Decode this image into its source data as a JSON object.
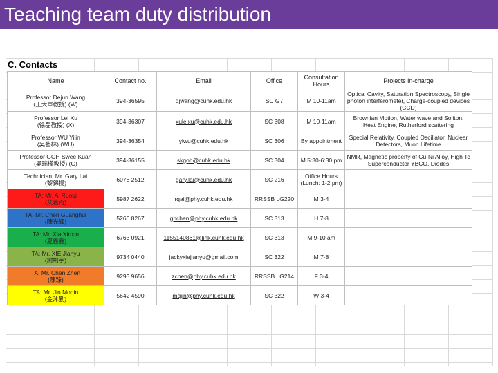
{
  "slide": {
    "title": "Teaching team duty distribution"
  },
  "section": {
    "label": "C. Contacts"
  },
  "colors": {
    "title_bar": "#6a3d9a",
    "red": "#ff1a1a",
    "blue": "#2f73c9",
    "green": "#19b04b",
    "olive": "#8ab34a",
    "orange": "#f07c2a",
    "yellow": "#ffff00"
  },
  "table": {
    "headers": [
      "Name",
      "Contact no.",
      "Email",
      "Office",
      "Consultation Hours",
      "Projects in-charge"
    ],
    "rows": [
      {
        "name_line1": "Professor Dejun Wang",
        "name_line2": "(王大軍教授) (W)",
        "contact": "394-36595",
        "email": "djwang@cuhk.edu.hk",
        "office": "SC G7",
        "hours": "M 10-11am",
        "projects": "Optical Cavity, Saturation Spectroscopy, Single photon interferometer, Charge-coupled devices (CCD)"
      },
      {
        "name_line1": "Professor Lei Xu",
        "name_line2": "(徐磊教授) (X)",
        "contact": "394-36307",
        "email": "xuleixu@cuhk.edu.hk",
        "office": "SC 308",
        "hours": "M 10-11am",
        "projects": "Brownian Motion, Water wave and Soliton, Heat Engine, Rutherford scattering"
      },
      {
        "name_line1": "Professor WU Yilin",
        "name_line2": "(吳藝林) (WU)",
        "contact": "394-36354",
        "email": "ylwu@cuhk.edu.hk",
        "office": "SC 306",
        "hours": "By appointment",
        "projects": "Special Relativity, Coupled Oscillator, Nuclear Detectors, Muon Lifetime"
      },
      {
        "name_line1": "Professor GOH Swee Kuan",
        "name_line2": "(吳瑞權教授) (G)",
        "contact": "394-36155",
        "email": "skgoh@cuhk.edu.hk",
        "office": "SC 304",
        "hours": "M 5:30-6:30 pm",
        "projects": "NMR, Magnetic property of Cu-Ni Alloy, High Tc Superconductor YBCO, Diodes"
      },
      {
        "name_line1": "Technician: Mr. Gary Lai",
        "name_line2": "(黎錦揚)",
        "contact": "6078 2512",
        "email": "gary.lai@cuhk.edu.hk",
        "office": "SC 216",
        "hours": "Office Hours (Lunch: 1-2 pm)",
        "projects": ""
      },
      {
        "color": "red",
        "name_line1": "TA: Mr. Ai Ruoqi",
        "name_line2": "(艾若奇)",
        "contact": "5987 2622",
        "email": "rqai@phy.cuhk.edu.hk",
        "office": "RRSSB LG220",
        "hours": "M 3-4",
        "projects": ""
      },
      {
        "color": "blue",
        "name_line1": "TA: Mr. Chen Guanghui",
        "name_line2": "(陳光輝)",
        "contact": "5266 8267",
        "email": "ghchen@phy.cuhk.edu.hk",
        "office": "SC 313",
        "hours": "H 7-8",
        "projects": ""
      },
      {
        "color": "green",
        "name_line1": "TA: Mr. Xia Xinxin",
        "name_line2": "(夏鑫鑫)",
        "contact": "6763 0921",
        "email": "1155140861@link.cuhk.edu.hk",
        "office": "SC 313",
        "hours": "M 9-10 am",
        "projects": ""
      },
      {
        "color": "olive",
        "name_line1": "TA: Mr. XIE Jianyu",
        "name_line2": "(謝劍宇)",
        "contact": "9734 0440",
        "email": "jackyxiejianyu@gmail.com",
        "office": "SC 322",
        "hours": "M 7-8",
        "projects": ""
      },
      {
        "color": "orange",
        "name_line1": "TA: Mr. Chen Zhen",
        "name_line2": "(陳臻)",
        "contact": "9293 9656",
        "email": "zchen@phy.cuhk.edu.hk",
        "office": "RRSSB LG214",
        "hours": "F 3-4",
        "projects": ""
      },
      {
        "color": "yellow",
        "name_line1": "TA: Mr. Jin Moqin",
        "name_line2": "(金沐勤)",
        "contact": "5642 4590",
        "email": "mqjin@phy.cuhk.edu.hk",
        "office": "SC 322",
        "hours": "W 3-4",
        "projects": ""
      }
    ]
  }
}
